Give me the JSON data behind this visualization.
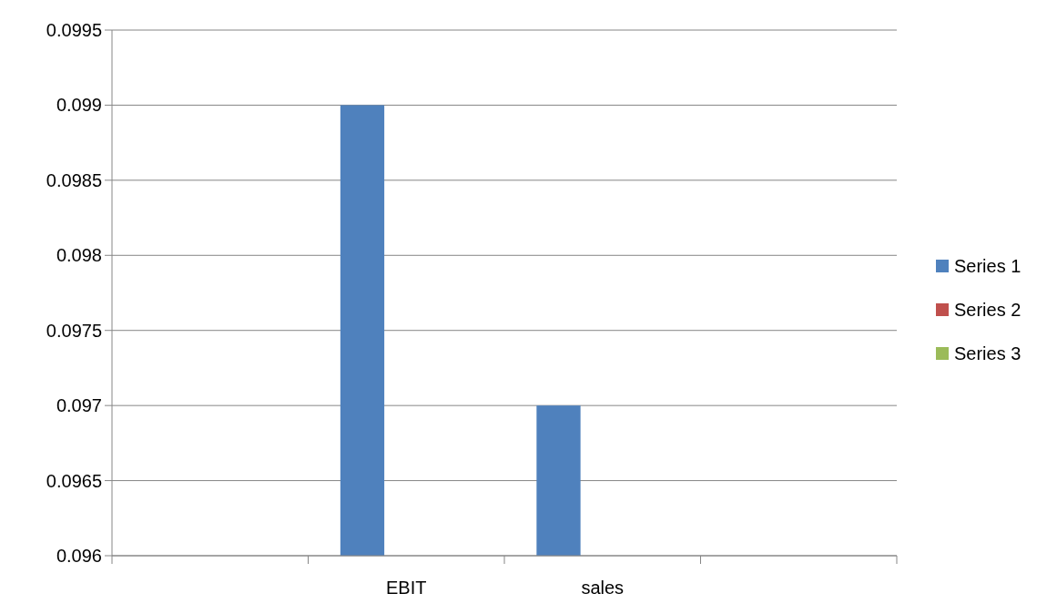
{
  "chart_data": {
    "type": "bar",
    "categories": [
      null,
      "EBIT",
      "sales",
      null
    ],
    "series": [
      {
        "name": "Series 1",
        "color": "#4f81bd",
        "values": [
          null,
          0.099,
          0.097,
          null
        ]
      },
      {
        "name": "Series 2",
        "color": "#c0504d",
        "values": [
          null,
          null,
          null,
          null
        ]
      },
      {
        "name": "Series 3",
        "color": "#9bbb59",
        "values": [
          null,
          null,
          null,
          null
        ]
      }
    ],
    "ylim": [
      0.096,
      0.0995
    ],
    "yticks": [
      0.096,
      0.0965,
      0.097,
      0.0975,
      0.098,
      0.0985,
      0.099,
      0.0995
    ],
    "grid": "y",
    "legend": "right"
  }
}
